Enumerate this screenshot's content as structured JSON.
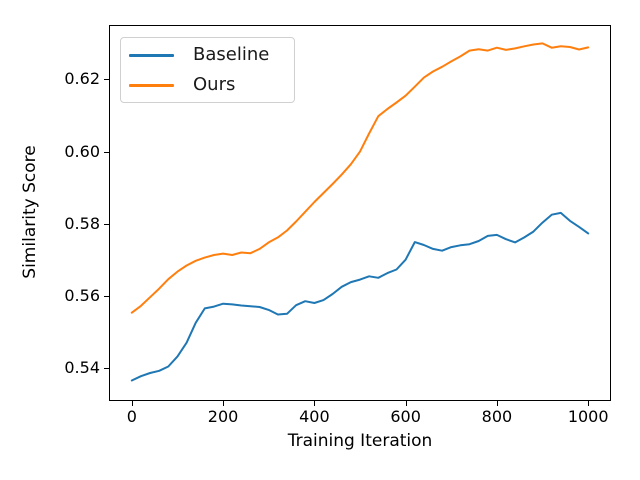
{
  "chart": {
    "xlabel": "Training Iteration",
    "ylabel": "Similarity Score",
    "x_tick_values": [
      0,
      200,
      400,
      600,
      800,
      1000
    ],
    "x_tick_labels": [
      "0",
      "200",
      "400",
      "600",
      "800",
      "1000"
    ],
    "y_tick_values": [
      0.54,
      0.56,
      0.58,
      0.6,
      0.62
    ],
    "y_tick_labels": [
      "0.54",
      "0.56",
      "0.58",
      "0.60",
      "0.62"
    ],
    "colors": {
      "baseline": "#1f77b4",
      "ours": "#ff7f0e",
      "spine": "#000000"
    }
  },
  "chart_data": {
    "type": "line",
    "title": "",
    "xlabel": "Training Iteration",
    "ylabel": "Similarity Score",
    "xlim": [
      -50,
      1050
    ],
    "ylim": [
      0.5311,
      0.6351
    ],
    "grid": false,
    "legend_position": "upper-left",
    "x": [
      0,
      20,
      40,
      60,
      80,
      100,
      120,
      140,
      160,
      180,
      200,
      220,
      240,
      260,
      280,
      300,
      320,
      340,
      360,
      380,
      400,
      420,
      440,
      460,
      480,
      500,
      520,
      540,
      560,
      580,
      600,
      620,
      640,
      660,
      680,
      700,
      720,
      740,
      760,
      780,
      800,
      820,
      840,
      860,
      880,
      900,
      920,
      940,
      960,
      980,
      1000
    ],
    "series": [
      {
        "name": "Baseline",
        "color": "#1f77b4",
        "values": [
          0.5365,
          0.5377,
          0.5386,
          0.5392,
          0.5404,
          0.5432,
          0.547,
          0.5525,
          0.5565,
          0.557,
          0.5578,
          0.5576,
          0.5573,
          0.5571,
          0.5569,
          0.5561,
          0.5548,
          0.555,
          0.5574,
          0.5585,
          0.558,
          0.5588,
          0.5605,
          0.5625,
          0.5638,
          0.5645,
          0.5654,
          0.565,
          0.5663,
          0.5673,
          0.57,
          0.5749,
          0.5741,
          0.573,
          0.5725,
          0.5735,
          0.574,
          0.5743,
          0.5752,
          0.5766,
          0.5769,
          0.5757,
          0.5748,
          0.5762,
          0.5778,
          0.5803,
          0.5825,
          0.583,
          0.5808,
          0.5791,
          0.5773
        ]
      },
      {
        "name": "Ours",
        "color": "#ff7f0e",
        "values": [
          0.5553,
          0.5572,
          0.5596,
          0.562,
          0.5646,
          0.5667,
          0.5684,
          0.5697,
          0.5706,
          0.5713,
          0.5717,
          0.5713,
          0.572,
          0.5718,
          0.573,
          0.5748,
          0.5762,
          0.5781,
          0.5806,
          0.5833,
          0.586,
          0.5885,
          0.591,
          0.5936,
          0.5965,
          0.6,
          0.605,
          0.6098,
          0.6118,
          0.6136,
          0.6155,
          0.618,
          0.6205,
          0.6222,
          0.6235,
          0.625,
          0.6264,
          0.628,
          0.6284,
          0.628,
          0.6288,
          0.6282,
          0.6286,
          0.6292,
          0.6297,
          0.63,
          0.6288,
          0.6292,
          0.629,
          0.6283,
          0.6289
        ]
      }
    ]
  }
}
